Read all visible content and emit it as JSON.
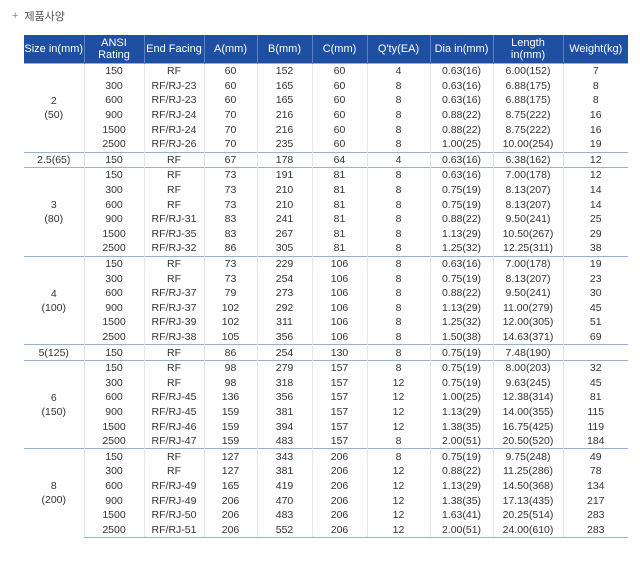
{
  "caption": "제품사양",
  "headers": [
    "Size in(mm)",
    "ANSI Rating",
    "End Facing",
    "A(mm)",
    "B(mm)",
    "C(mm)",
    "Q'ty(EA)",
    "Dia in(mm)",
    "Length in(mm)",
    "Weight(kg)"
  ],
  "groups": [
    {
      "size": "2",
      "mm": "(50)",
      "rows": [
        [
          "150",
          "RF",
          "60",
          "152",
          "60",
          "4",
          "0.63(16)",
          "6.00(152)",
          "7"
        ],
        [
          "300",
          "RF/RJ-23",
          "60",
          "165",
          "60",
          "8",
          "0.63(16)",
          "6.88(175)",
          "8"
        ],
        [
          "600",
          "RF/RJ-23",
          "60",
          "165",
          "60",
          "8",
          "0.63(16)",
          "6.88(175)",
          "8"
        ],
        [
          "900",
          "RF/RJ-24",
          "70",
          "216",
          "60",
          "8",
          "0.88(22)",
          "8.75(222)",
          "16"
        ],
        [
          "1500",
          "RF/RJ-24",
          "70",
          "216",
          "60",
          "8",
          "0.88(22)",
          "8.75(222)",
          "16"
        ],
        [
          "2500",
          "RF/RJ-26",
          "70",
          "235",
          "60",
          "8",
          "1.00(25)",
          "10.00(254)",
          "19"
        ]
      ]
    },
    {
      "size": "2.5(65)",
      "mm": "",
      "rows": [
        [
          "150",
          "RF",
          "67",
          "178",
          "64",
          "4",
          "0.63(16)",
          "6.38(162)",
          "12"
        ]
      ]
    },
    {
      "size": "3",
      "mm": "(80)",
      "rows": [
        [
          "150",
          "RF",
          "73",
          "191",
          "81",
          "8",
          "0.63(16)",
          "7.00(178)",
          "12"
        ],
        [
          "300",
          "RF",
          "73",
          "210",
          "81",
          "8",
          "0.75(19)",
          "8.13(207)",
          "14"
        ],
        [
          "600",
          "RF",
          "73",
          "210",
          "81",
          "8",
          "0.75(19)",
          "8.13(207)",
          "14"
        ],
        [
          "900",
          "RF/RJ-31",
          "83",
          "241",
          "81",
          "8",
          "0.88(22)",
          "9.50(241)",
          "25"
        ],
        [
          "1500",
          "RF/RJ-35",
          "83",
          "267",
          "81",
          "8",
          "1.13(29)",
          "10.50(267)",
          "29"
        ],
        [
          "2500",
          "RF/RJ-32",
          "86",
          "305",
          "81",
          "8",
          "1.25(32)",
          "12.25(311)",
          "38"
        ]
      ]
    },
    {
      "size": "4",
      "mm": "(100)",
      "rows": [
        [
          "150",
          "RF",
          "73",
          "229",
          "106",
          "8",
          "0.63(16)",
          "7.00(178)",
          "19"
        ],
        [
          "300",
          "RF",
          "73",
          "254",
          "106",
          "8",
          "0.75(19)",
          "8.13(207)",
          "23"
        ],
        [
          "600",
          "RF/RJ-37",
          "79",
          "273",
          "106",
          "8",
          "0.88(22)",
          "9.50(241)",
          "30"
        ],
        [
          "900",
          "RF/RJ-37",
          "102",
          "292",
          "106",
          "8",
          "1.13(29)",
          "11.00(279)",
          "45"
        ],
        [
          "1500",
          "RF/RJ-39",
          "102",
          "311",
          "106",
          "8",
          "1.25(32)",
          "12.00(305)",
          "51"
        ],
        [
          "2500",
          "RF/RJ-38",
          "105",
          "356",
          "106",
          "8",
          "1.50(38)",
          "14.63(371)",
          "69"
        ]
      ]
    },
    {
      "size": "5(125)",
      "mm": "",
      "rows": [
        [
          "150",
          "RF",
          "86",
          "254",
          "130",
          "8",
          "0.75(19)",
          "7.48(190)",
          ""
        ]
      ]
    },
    {
      "size": "6",
      "mm": "(150)",
      "rows": [
        [
          "150",
          "RF",
          "98",
          "279",
          "157",
          "8",
          "0.75(19)",
          "8.00(203)",
          "32"
        ],
        [
          "300",
          "RF",
          "98",
          "318",
          "157",
          "12",
          "0.75(19)",
          "9.63(245)",
          "45"
        ],
        [
          "600",
          "RF/RJ-45",
          "136",
          "356",
          "157",
          "12",
          "1.00(25)",
          "12.38(314)",
          "81"
        ],
        [
          "900",
          "RF/RJ-45",
          "159",
          "381",
          "157",
          "12",
          "1.13(29)",
          "14.00(355)",
          "115"
        ],
        [
          "1500",
          "RF/RJ-46",
          "159",
          "394",
          "157",
          "12",
          "1.38(35)",
          "16.75(425)",
          "119"
        ],
        [
          "2500",
          "RF/RJ-47",
          "159",
          "483",
          "157",
          "8",
          "2.00(51)",
          "20.50(520)",
          "184"
        ]
      ]
    },
    {
      "size": "8",
      "mm": "(200)",
      "rows": [
        [
          "150",
          "RF",
          "127",
          "343",
          "206",
          "8",
          "0.75(19)",
          "9.75(248)",
          "49"
        ],
        [
          "300",
          "RF",
          "127",
          "381",
          "206",
          "12",
          "0.88(22)",
          "11.25(286)",
          "78"
        ],
        [
          "600",
          "RF/RJ-49",
          "165",
          "419",
          "206",
          "12",
          "1.13(29)",
          "14.50(368)",
          "134"
        ],
        [
          "900",
          "RF/RJ-49",
          "206",
          "470",
          "206",
          "12",
          "1.38(35)",
          "17.13(435)",
          "217"
        ],
        [
          "1500",
          "RF/RJ-50",
          "206",
          "483",
          "206",
          "12",
          "1.63(41)",
          "20.25(514)",
          "283"
        ],
        [
          "2500",
          "RF/RJ-51",
          "206",
          "552",
          "206",
          "12",
          "2.00(51)",
          "24.00(610)",
          "283"
        ]
      ]
    }
  ]
}
